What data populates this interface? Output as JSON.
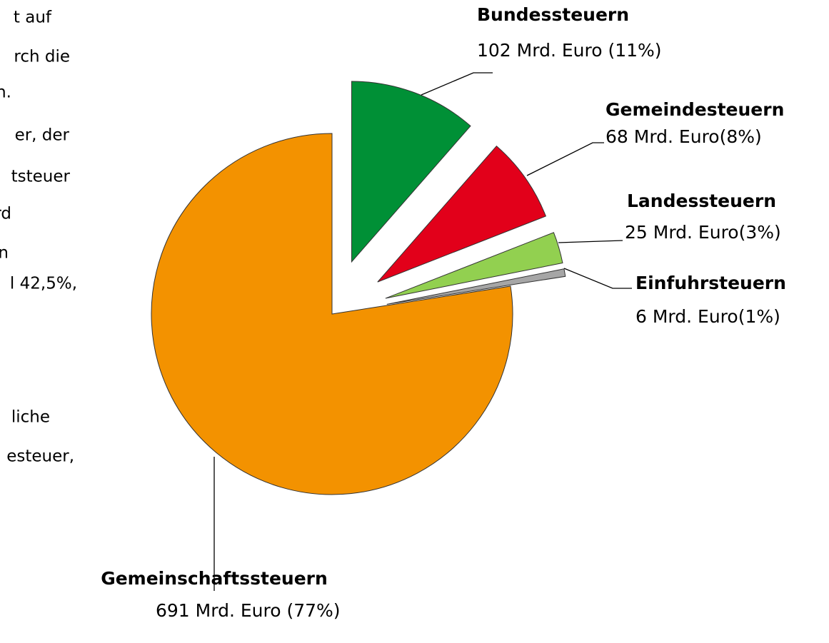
{
  "side_text": [
    "t auf",
    "rch die",
    "n.",
    "er, der",
    "tsteuer",
    "rd",
    "n",
    "l 42,5%,",
    "liche",
    "esteuer,"
  ],
  "chart_data": {
    "type": "pie",
    "categories": [
      "Bundessteuern",
      "Gemeindesteuern",
      "Landessteuern",
      "Einfuhrsteuern",
      "Gemeinschaftssteuern"
    ],
    "values": [
      102,
      68,
      25,
      6,
      691
    ],
    "value_labels": [
      "102 Mrd. Euro (11%)",
      "68 Mrd. Euro(8%)",
      "25 Mrd. Euro(3%)",
      "6 Mrd. Euro(1%)",
      "691 Mrd. Euro (77%)"
    ],
    "colors": [
      "#009036",
      "#e2001a",
      "#92d050",
      "#a6a6a6",
      "#f39200"
    ],
    "exploded": [
      true,
      true,
      true,
      true,
      false
    ]
  }
}
